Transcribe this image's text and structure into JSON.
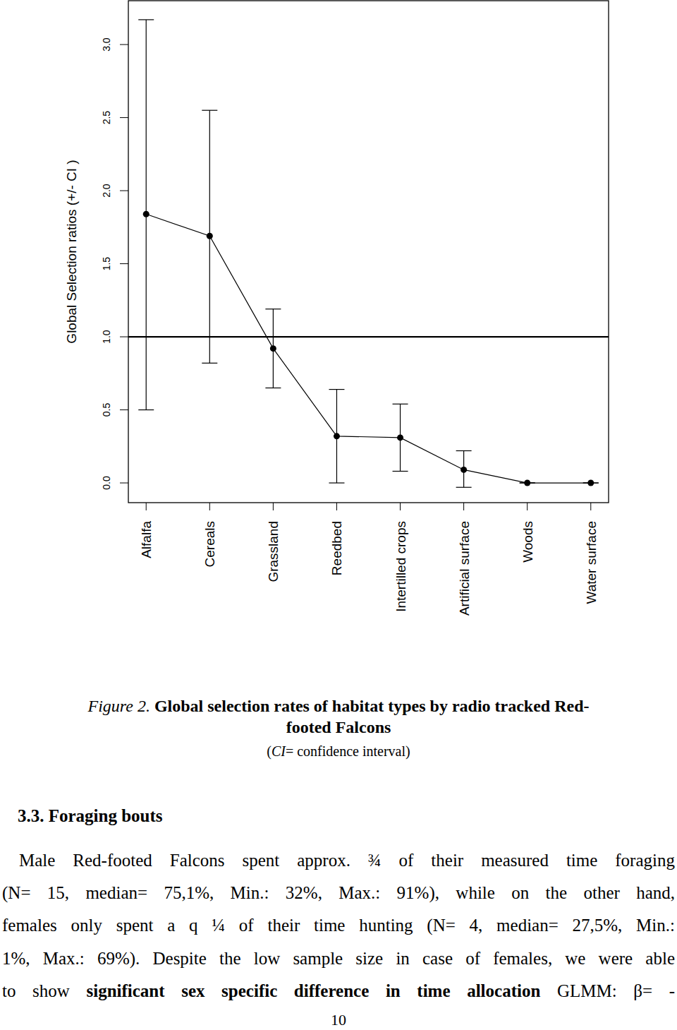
{
  "chart_data": {
    "type": "line",
    "y_label": "Global Selection ratios (+/- CI )",
    "categories": [
      "Alfalfa",
      "Cereals",
      "Grassland",
      "Reedbed",
      "Intertilled crops",
      "Artificial surface",
      "Woods",
      "Water surface"
    ],
    "values": [
      1.84,
      1.69,
      0.92,
      0.32,
      0.31,
      0.09,
      0.0,
      0.0
    ],
    "ci_lower": [
      0.5,
      0.82,
      0.65,
      0.0,
      0.08,
      -0.03,
      0.0,
      0.0
    ],
    "ci_upper": [
      3.17,
      2.55,
      1.19,
      0.64,
      0.54,
      0.22,
      0.0,
      0.0
    ],
    "hline": 1,
    "color": "#000000",
    "marker": "circle",
    "ylim": [
      -0.135,
      3.3
    ],
    "yticks": [
      {
        "value": 0,
        "label": "0.0"
      },
      {
        "value": 0.5,
        "label": "0.5"
      },
      {
        "value": 1,
        "label": "1.0"
      },
      {
        "value": 1.5,
        "label": "1.5"
      },
      {
        "value": 2,
        "label": "2.0"
      },
      {
        "value": 2.5,
        "label": "2.5"
      },
      {
        "value": 3,
        "label": "3.0"
      }
    ]
  },
  "caption": {
    "lines": [
      [
        {
          "text": "Figure 2. ",
          "style": "italic"
        },
        {
          "text": "Global selection rates of habitat types by radio tracked Red-",
          "style": "bold"
        }
      ],
      [
        {
          "text": "footed Falcons",
          "style": "bold"
        }
      ],
      [
        {
          "text": "(",
          "style": "normal"
        },
        {
          "text": "CI",
          "style": "italic"
        },
        {
          "text": "= confidence interval)",
          "style": "normal"
        }
      ]
    ]
  },
  "section": {
    "heading": "3.3. Foraging bouts",
    "lines": [
      [
        {
          "text": "Male Red-footed Falcons spent approx. ¾ of their measured time foraging",
          "style": "normal"
        }
      ],
      [
        {
          "text": "(N= 15, median= 75,1%, Min.: 32%, Max.: 91%), while on the other hand,",
          "style": "normal"
        }
      ],
      [
        {
          "text": "females only spent a q ¼ of their time hunting (N= 4, median= 27,5%, Min.:",
          "style": "normal"
        }
      ],
      [
        {
          "text": "1%, Max.: 69%). Despite the low sample size in case of females, we were able",
          "style": "normal"
        }
      ],
      [
        {
          "text": "to show ",
          "style": "normal"
        },
        {
          "text": "significant sex specific difference in time allocation",
          "style": "bold"
        },
        {
          "text": " GLMM: β= -",
          "style": "normal"
        }
      ]
    ]
  },
  "page_number": "10"
}
